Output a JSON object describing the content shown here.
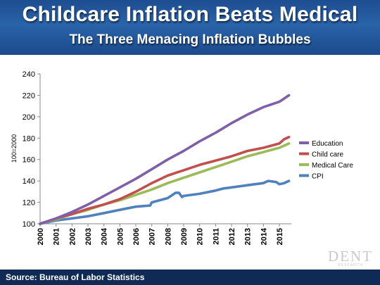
{
  "slide": {
    "title": "Childcare Inflation Beats Medical",
    "subtitle": "The Three Menacing Inflation Bubbles",
    "source": "Source: Bureau of Labor Statistics",
    "logo": "DENT",
    "logo_sub": "RESEARCH"
  },
  "chart_data": {
    "type": "line",
    "title": "",
    "xlabel": "",
    "ylabel": "100=2000",
    "ylim": [
      100,
      240
    ],
    "yticks": [
      100,
      120,
      140,
      160,
      180,
      200,
      220,
      240
    ],
    "xlim": [
      2000,
      2015.75
    ],
    "xticks": [
      "2000",
      "2001",
      "2002",
      "2003",
      "2004",
      "2005",
      "2006",
      "2007",
      "2008",
      "2009",
      "2010",
      "2011",
      "2012",
      "2013",
      "2014",
      "2015"
    ],
    "grid": false,
    "legend_position": "right",
    "series": [
      {
        "name": "Education",
        "color": "#7f5fa8",
        "x": [
          2000,
          2001,
          2002,
          2003,
          2004,
          2005,
          2006,
          2007,
          2008,
          2009,
          2010,
          2011,
          2012,
          2013,
          2014,
          2015,
          2015.6
        ],
        "y": [
          100,
          105,
          111,
          118,
          126,
          134,
          142,
          151,
          160,
          168,
          177,
          185,
          194,
          202,
          209,
          214,
          220
        ]
      },
      {
        "name": "Child care",
        "color": "#c0504d",
        "x": [
          2000,
          2001,
          2002,
          2003,
          2004,
          2005,
          2006,
          2007,
          2008,
          2009,
          2010,
          2011,
          2012,
          2013,
          2014,
          2015,
          2015.3,
          2015.6
        ],
        "y": [
          100,
          105,
          109,
          114,
          118,
          123,
          130,
          138,
          145,
          150,
          155,
          159,
          163,
          168,
          171,
          175,
          179,
          181
        ]
      },
      {
        "name": "Medical Care",
        "color": "#9bbb59",
        "x": [
          2000,
          2001,
          2002,
          2003,
          2004,
          2005,
          2006,
          2007,
          2008,
          2009,
          2010,
          2011,
          2012,
          2013,
          2014,
          2015,
          2015.6
        ],
        "y": [
          100,
          104,
          109,
          113,
          118,
          122,
          127,
          132,
          138,
          143,
          148,
          153,
          158,
          163,
          167,
          171,
          175
        ]
      },
      {
        "name": "CPI",
        "color": "#4f81bd",
        "x": [
          2000,
          2001,
          2002,
          2003,
          2004,
          2005,
          2006,
          2006.9,
          2007,
          2008,
          2008.5,
          2008.7,
          2008.9,
          2009,
          2010,
          2011,
          2011.5,
          2012,
          2013,
          2014,
          2014.3,
          2014.8,
          2015,
          2015.3,
          2015.6
        ],
        "y": [
          100,
          103,
          105,
          107,
          110,
          113,
          116,
          117,
          120,
          124,
          129,
          129,
          125,
          126,
          128,
          131,
          133,
          134,
          136,
          138,
          140,
          139,
          137,
          138,
          140
        ]
      }
    ]
  }
}
